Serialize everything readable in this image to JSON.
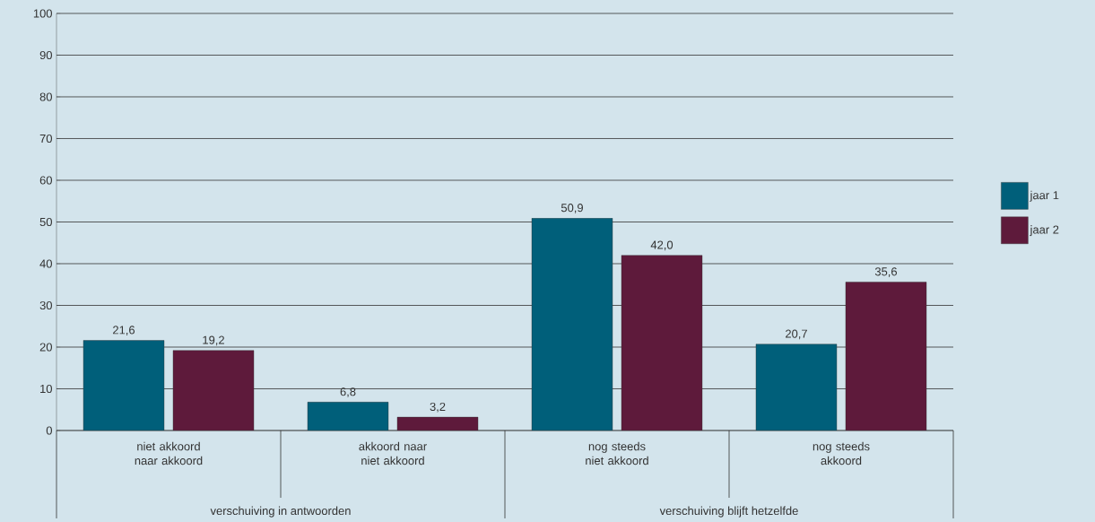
{
  "chart_data": {
    "type": "bar",
    "categories": [
      "niet akkoord naar akkoord",
      "akkoord naar niet akkoord",
      "nog steeds niet akkoord",
      "nog steeds akkoord"
    ],
    "series": [
      {
        "name": "jaar 1",
        "color": "#005f7a",
        "values": [
          21.6,
          6.8,
          50.9,
          20.7
        ],
        "value_labels": [
          "21,6",
          "6,8",
          "50,9",
          "20,7"
        ]
      },
      {
        "name": "jaar 2",
        "color": "#5e1a3b",
        "values": [
          19.2,
          3.2,
          42.0,
          35.6
        ],
        "value_labels": [
          "19,2",
          "3,2",
          "42,0",
          "35,6"
        ]
      }
    ],
    "ylim": [
      0,
      100
    ],
    "yticks": [
      0,
      10,
      20,
      30,
      40,
      50,
      60,
      70,
      80,
      90,
      100
    ],
    "grid": "y",
    "legend": "right",
    "annotations": [
      "verschuiving in antwoorden",
      "verschuiving blijft hetzelfde"
    ]
  }
}
